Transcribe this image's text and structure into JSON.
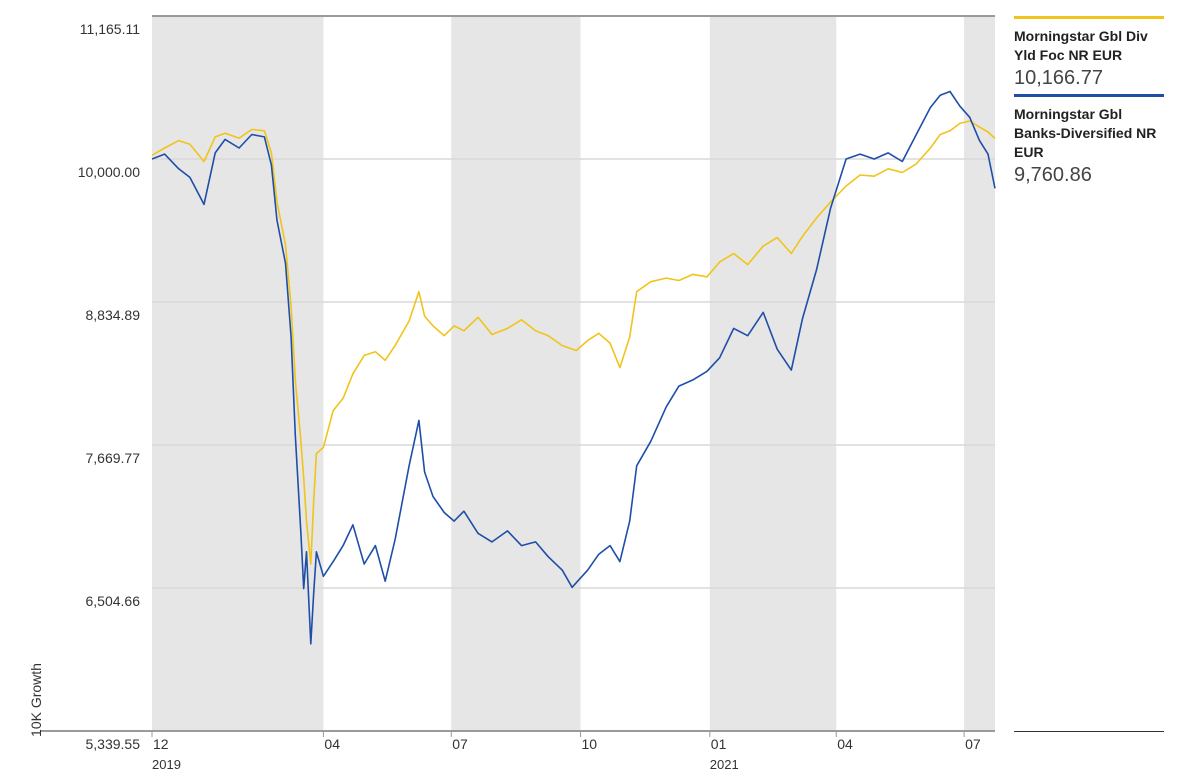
{
  "chart_data": {
    "type": "line",
    "ylabel": "10K Growth",
    "y_ticks": [
      "11,165.11",
      "10,000.00",
      "8,834.89",
      "7,669.77",
      "6,504.66",
      "5,339.55"
    ],
    "y_tick_values": [
      11165.11,
      10000.0,
      8834.89,
      7669.77,
      6504.66,
      5339.55
    ],
    "ylim": [
      5339.55,
      11165.11
    ],
    "x_ticks": [
      {
        "label": "12",
        "sub": "2019",
        "date": "2019-12-01"
      },
      {
        "label": "04",
        "sub": "",
        "date": "2020-04-01"
      },
      {
        "label": "07",
        "sub": "",
        "date": "2020-07-01"
      },
      {
        "label": "10",
        "sub": "",
        "date": "2020-10-01"
      },
      {
        "label": "01",
        "sub": "2021",
        "date": "2021-01-01"
      },
      {
        "label": "04",
        "sub": "",
        "date": "2021-04-01"
      },
      {
        "label": "07",
        "sub": "",
        "date": "2021-07-01"
      }
    ],
    "xlim": [
      "2019-12-01",
      "2021-07-23"
    ],
    "shaded_bands": [
      [
        "2019-12-01",
        "2020-04-01"
      ],
      [
        "2020-07-01",
        "2020-10-01"
      ],
      [
        "2021-01-01",
        "2021-04-01"
      ],
      [
        "2021-07-01",
        "2021-07-23"
      ]
    ],
    "grid": true,
    "legend_position": "right",
    "series": [
      {
        "name": "Morningstar Gbl Div Yld Foc NR EUR",
        "value": "10,166.77",
        "color": "#F0C419",
        "points": [
          [
            "2019-12-01",
            10030
          ],
          [
            "2019-12-10",
            10090
          ],
          [
            "2019-12-20",
            10150
          ],
          [
            "2019-12-28",
            10120
          ],
          [
            "2020-01-07",
            9980
          ],
          [
            "2020-01-15",
            10180
          ],
          [
            "2020-01-22",
            10210
          ],
          [
            "2020-02-01",
            10170
          ],
          [
            "2020-02-10",
            10240
          ],
          [
            "2020-02-19",
            10230
          ],
          [
            "2020-02-24",
            10050
          ],
          [
            "2020-02-28",
            9650
          ],
          [
            "2020-03-05",
            9300
          ],
          [
            "2020-03-09",
            8800
          ],
          [
            "2020-03-12",
            8200
          ],
          [
            "2020-03-16",
            7700
          ],
          [
            "2020-03-18",
            7400
          ],
          [
            "2020-03-20",
            7050
          ],
          [
            "2020-03-23",
            6700
          ],
          [
            "2020-03-25",
            7200
          ],
          [
            "2020-03-27",
            7600
          ],
          [
            "2020-04-01",
            7650
          ],
          [
            "2020-04-08",
            7950
          ],
          [
            "2020-04-15",
            8050
          ],
          [
            "2020-04-22",
            8250
          ],
          [
            "2020-04-30",
            8400
          ],
          [
            "2020-05-08",
            8430
          ],
          [
            "2020-05-15",
            8360
          ],
          [
            "2020-05-22",
            8480
          ],
          [
            "2020-06-01",
            8680
          ],
          [
            "2020-06-08",
            8920
          ],
          [
            "2020-06-12",
            8720
          ],
          [
            "2020-06-18",
            8640
          ],
          [
            "2020-06-26",
            8560
          ],
          [
            "2020-07-03",
            8640
          ],
          [
            "2020-07-10",
            8600
          ],
          [
            "2020-07-20",
            8710
          ],
          [
            "2020-07-30",
            8570
          ],
          [
            "2020-08-10",
            8620
          ],
          [
            "2020-08-20",
            8690
          ],
          [
            "2020-08-30",
            8600
          ],
          [
            "2020-09-08",
            8560
          ],
          [
            "2020-09-18",
            8480
          ],
          [
            "2020-09-28",
            8440
          ],
          [
            "2020-10-06",
            8520
          ],
          [
            "2020-10-14",
            8580
          ],
          [
            "2020-10-22",
            8500
          ],
          [
            "2020-10-29",
            8300
          ],
          [
            "2020-11-05",
            8550
          ],
          [
            "2020-11-10",
            8920
          ],
          [
            "2020-11-20",
            9000
          ],
          [
            "2020-12-01",
            9030
          ],
          [
            "2020-12-10",
            9010
          ],
          [
            "2020-12-20",
            9060
          ],
          [
            "2020-12-30",
            9040
          ],
          [
            "2021-01-08",
            9160
          ],
          [
            "2021-01-18",
            9230
          ],
          [
            "2021-01-28",
            9140
          ],
          [
            "2021-02-08",
            9290
          ],
          [
            "2021-02-18",
            9360
          ],
          [
            "2021-02-28",
            9230
          ],
          [
            "2021-03-08",
            9370
          ],
          [
            "2021-03-18",
            9520
          ],
          [
            "2021-03-28",
            9650
          ],
          [
            "2021-04-08",
            9780
          ],
          [
            "2021-04-18",
            9870
          ],
          [
            "2021-04-28",
            9860
          ],
          [
            "2021-05-08",
            9920
          ],
          [
            "2021-05-18",
            9890
          ],
          [
            "2021-05-28",
            9960
          ],
          [
            "2021-06-07",
            10090
          ],
          [
            "2021-06-14",
            10200
          ],
          [
            "2021-06-21",
            10230
          ],
          [
            "2021-06-28",
            10290
          ],
          [
            "2021-07-05",
            10310
          ],
          [
            "2021-07-12",
            10260
          ],
          [
            "2021-07-18",
            10220
          ],
          [
            "2021-07-23",
            10166.77
          ]
        ]
      },
      {
        "name": "Morningstar Gbl Banks-Diversified NR EUR",
        "value": "9,760.86",
        "color": "#1F4EA8",
        "points": [
          [
            "2019-12-01",
            10000
          ],
          [
            "2019-12-10",
            10040
          ],
          [
            "2019-12-20",
            9920
          ],
          [
            "2019-12-28",
            9850
          ],
          [
            "2020-01-07",
            9630
          ],
          [
            "2020-01-15",
            10050
          ],
          [
            "2020-01-22",
            10160
          ],
          [
            "2020-02-01",
            10090
          ],
          [
            "2020-02-10",
            10200
          ],
          [
            "2020-02-19",
            10180
          ],
          [
            "2020-02-24",
            9950
          ],
          [
            "2020-02-28",
            9500
          ],
          [
            "2020-03-05",
            9150
          ],
          [
            "2020-03-09",
            8550
          ],
          [
            "2020-03-12",
            7750
          ],
          [
            "2020-03-16",
            6950
          ],
          [
            "2020-03-18",
            6500
          ],
          [
            "2020-03-20",
            6800
          ],
          [
            "2020-03-23",
            6050
          ],
          [
            "2020-03-25",
            6450
          ],
          [
            "2020-03-27",
            6800
          ],
          [
            "2020-04-01",
            6600
          ],
          [
            "2020-04-08",
            6720
          ],
          [
            "2020-04-15",
            6850
          ],
          [
            "2020-04-22",
            7020
          ],
          [
            "2020-04-30",
            6700
          ],
          [
            "2020-05-08",
            6850
          ],
          [
            "2020-05-15",
            6560
          ],
          [
            "2020-05-22",
            6900
          ],
          [
            "2020-06-01",
            7500
          ],
          [
            "2020-06-08",
            7870
          ],
          [
            "2020-06-12",
            7450
          ],
          [
            "2020-06-18",
            7250
          ],
          [
            "2020-06-26",
            7120
          ],
          [
            "2020-07-03",
            7050
          ],
          [
            "2020-07-10",
            7130
          ],
          [
            "2020-07-20",
            6950
          ],
          [
            "2020-07-30",
            6880
          ],
          [
            "2020-08-10",
            6970
          ],
          [
            "2020-08-20",
            6850
          ],
          [
            "2020-08-30",
            6880
          ],
          [
            "2020-09-08",
            6760
          ],
          [
            "2020-09-18",
            6650
          ],
          [
            "2020-09-25",
            6510
          ],
          [
            "2020-10-06",
            6650
          ],
          [
            "2020-10-14",
            6780
          ],
          [
            "2020-10-22",
            6850
          ],
          [
            "2020-10-29",
            6720
          ],
          [
            "2020-11-05",
            7050
          ],
          [
            "2020-11-10",
            7500
          ],
          [
            "2020-11-20",
            7700
          ],
          [
            "2020-12-01",
            7980
          ],
          [
            "2020-12-10",
            8150
          ],
          [
            "2020-12-20",
            8200
          ],
          [
            "2020-12-30",
            8270
          ],
          [
            "2021-01-08",
            8380
          ],
          [
            "2021-01-18",
            8620
          ],
          [
            "2021-01-28",
            8560
          ],
          [
            "2021-02-08",
            8750
          ],
          [
            "2021-02-18",
            8450
          ],
          [
            "2021-02-28",
            8280
          ],
          [
            "2021-03-08",
            8700
          ],
          [
            "2021-03-18",
            9100
          ],
          [
            "2021-03-28",
            9600
          ],
          [
            "2021-04-08",
            10000
          ],
          [
            "2021-04-18",
            10040
          ],
          [
            "2021-04-28",
            10000
          ],
          [
            "2021-05-08",
            10050
          ],
          [
            "2021-05-18",
            9980
          ],
          [
            "2021-05-28",
            10200
          ],
          [
            "2021-06-07",
            10420
          ],
          [
            "2021-06-14",
            10520
          ],
          [
            "2021-06-21",
            10550
          ],
          [
            "2021-06-28",
            10430
          ],
          [
            "2021-07-05",
            10340
          ],
          [
            "2021-07-12",
            10150
          ],
          [
            "2021-07-18",
            10040
          ],
          [
            "2021-07-23",
            9760.86
          ]
        ]
      }
    ]
  }
}
